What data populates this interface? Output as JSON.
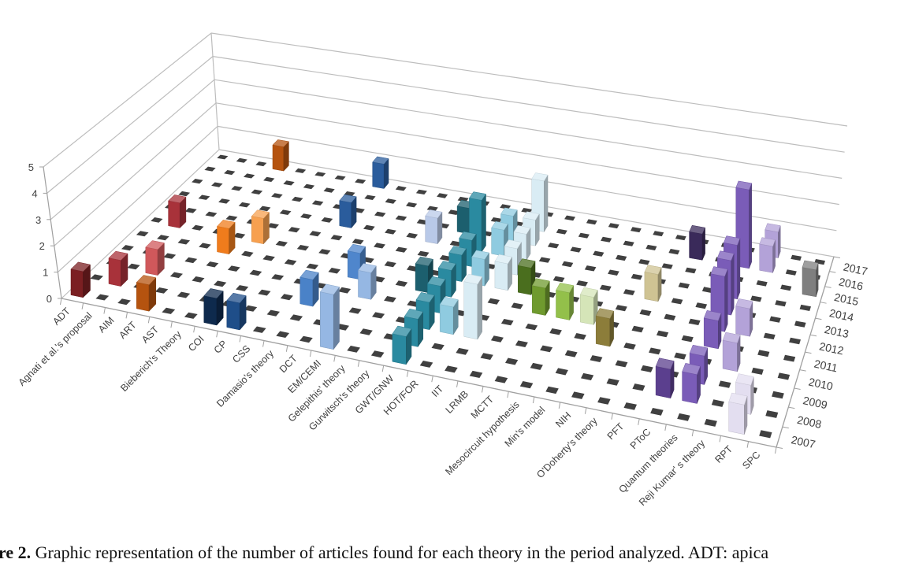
{
  "chart_data": {
    "type": "bar3d",
    "title": "",
    "xlabel": "",
    "ylabel": "",
    "ylim": [
      0,
      5
    ],
    "yticks": [
      "0",
      "1",
      "2",
      "3",
      "4",
      "5"
    ],
    "grid": true,
    "categories": [
      "ADT",
      "Agnati et al.'s proposal",
      "AIM",
      "ART",
      "AST",
      "Bieberich's Theory",
      "COI",
      "CP",
      "CSS",
      "Damasio's theory",
      "DCT",
      "EM/CEMI",
      "Gelepithis' theory",
      "Gurwitsch's theory",
      "GWT/GNW",
      "HOT/FOR",
      "IIT",
      "LRMB",
      "MCTT",
      "Mesocircuit hypothesis",
      "Min's model",
      "NIH",
      "O'Doherty's theory",
      "PFT",
      "PToC",
      "Quantum theories",
      "Reji Kumar' s theory",
      "RPT",
      "SPC"
    ],
    "years": [
      "2007",
      "2008",
      "2009",
      "2010",
      "2011",
      "2012",
      "2013",
      "2014",
      "2015",
      "2016",
      "2017"
    ],
    "values": [
      [
        1,
        0,
        0,
        0,
        0,
        0,
        0,
        0,
        0,
        0,
        0
      ],
      [
        0,
        1,
        0,
        0,
        0,
        1,
        0,
        0,
        0,
        0,
        0
      ],
      [
        0,
        0,
        1,
        0,
        0,
        0,
        0,
        0,
        0,
        0,
        0
      ],
      [
        1,
        0,
        0,
        0,
        0,
        0,
        0,
        0,
        0,
        0,
        1
      ],
      [
        0,
        0,
        0,
        0,
        1,
        0,
        0,
        0,
        0,
        0,
        0
      ],
      [
        0,
        0,
        0,
        0,
        0,
        1,
        0,
        0,
        0,
        0,
        0
      ],
      [
        1,
        0,
        0,
        0,
        0,
        0,
        0,
        0,
        0,
        0,
        0
      ],
      [
        1,
        0,
        0,
        0,
        0,
        0,
        0,
        0,
        0,
        0,
        0
      ],
      [
        0,
        0,
        0,
        0,
        0,
        0,
        0,
        1,
        0,
        0,
        1
      ],
      [
        0,
        0,
        1,
        0,
        0,
        0,
        0,
        0,
        0,
        0,
        0
      ],
      [
        0,
        0,
        0,
        0,
        1,
        0,
        0,
        0,
        0,
        0,
        0
      ],
      [
        2,
        0,
        0,
        1,
        0,
        0,
        0,
        0,
        0,
        0,
        0
      ],
      [
        0,
        0,
        0,
        0,
        0,
        0,
        0,
        1,
        0,
        0,
        0
      ],
      [
        0,
        0,
        0,
        0,
        1,
        0,
        0,
        0,
        1,
        0,
        0
      ],
      [
        1,
        1,
        1,
        1,
        1,
        1,
        1,
        2,
        0,
        0,
        0
      ],
      [
        0,
        0,
        1,
        0,
        0,
        1,
        0,
        1,
        1,
        0,
        0
      ],
      [
        0,
        0,
        2,
        0,
        0,
        1,
        1,
        1,
        1,
        2,
        0
      ],
      [
        0,
        0,
        0,
        0,
        0,
        1,
        0,
        0,
        0,
        0,
        0
      ],
      [
        0,
        0,
        0,
        0,
        1,
        0,
        0,
        0,
        0,
        0,
        0
      ],
      [
        0,
        0,
        0,
        0,
        1,
        0,
        0,
        0,
        0,
        0,
        0
      ],
      [
        0,
        0,
        0,
        0,
        1,
        0,
        0,
        0,
        0,
        0,
        0
      ],
      [
        0,
        0,
        0,
        1,
        0,
        0,
        0,
        0,
        0,
        0,
        0
      ],
      [
        0,
        0,
        0,
        0,
        0,
        0,
        1,
        0,
        0,
        0,
        0
      ],
      [
        0,
        0,
        0,
        0,
        0,
        0,
        0,
        0,
        0,
        1,
        0
      ],
      [
        0,
        1,
        0,
        0,
        0,
        0,
        0,
        0,
        0,
        0,
        0
      ],
      [
        0,
        1,
        1,
        0,
        1,
        2,
        2,
        2,
        0,
        3,
        0
      ],
      [
        0,
        0,
        0,
        1,
        0,
        1,
        0,
        0,
        0,
        1,
        1
      ],
      [
        1,
        1,
        0,
        0,
        0,
        0,
        0,
        0,
        0,
        0,
        0
      ],
      [
        0,
        0,
        0,
        0,
        0,
        0,
        0,
        0,
        1,
        0,
        0
      ]
    ],
    "colors": [
      "#7b1f22",
      "#a8323a",
      "#d0585b",
      "#b5530f",
      "#f07c1c",
      "#f7a04f",
      "#0e2a4d",
      "#1f4e89",
      "#2a5c9c",
      "#4a82c8",
      "#4f86cc",
      "#95b7e3",
      "#b9c9e8",
      "#1c5f6e",
      "#2a8aa0",
      "#8fcbe0",
      "#d9ecf4",
      "#4a6e1e",
      "#6f9a2e",
      "#93c04a",
      "#d5e5b8",
      "#8c7d3a",
      "#cfc393",
      "#3a2a5a",
      "#5b3f8e",
      "#7a5cb8",
      "#b3a2d8",
      "#e3def0",
      "#7f7f7f"
    ],
    "floor_marker_color": "#404040",
    "gridline_color": "#bdbdbd"
  },
  "caption": {
    "label": "re 2.",
    "text": "Graphic representation of the number of articles found for each theory in the period analyzed. ADT: apica"
  }
}
